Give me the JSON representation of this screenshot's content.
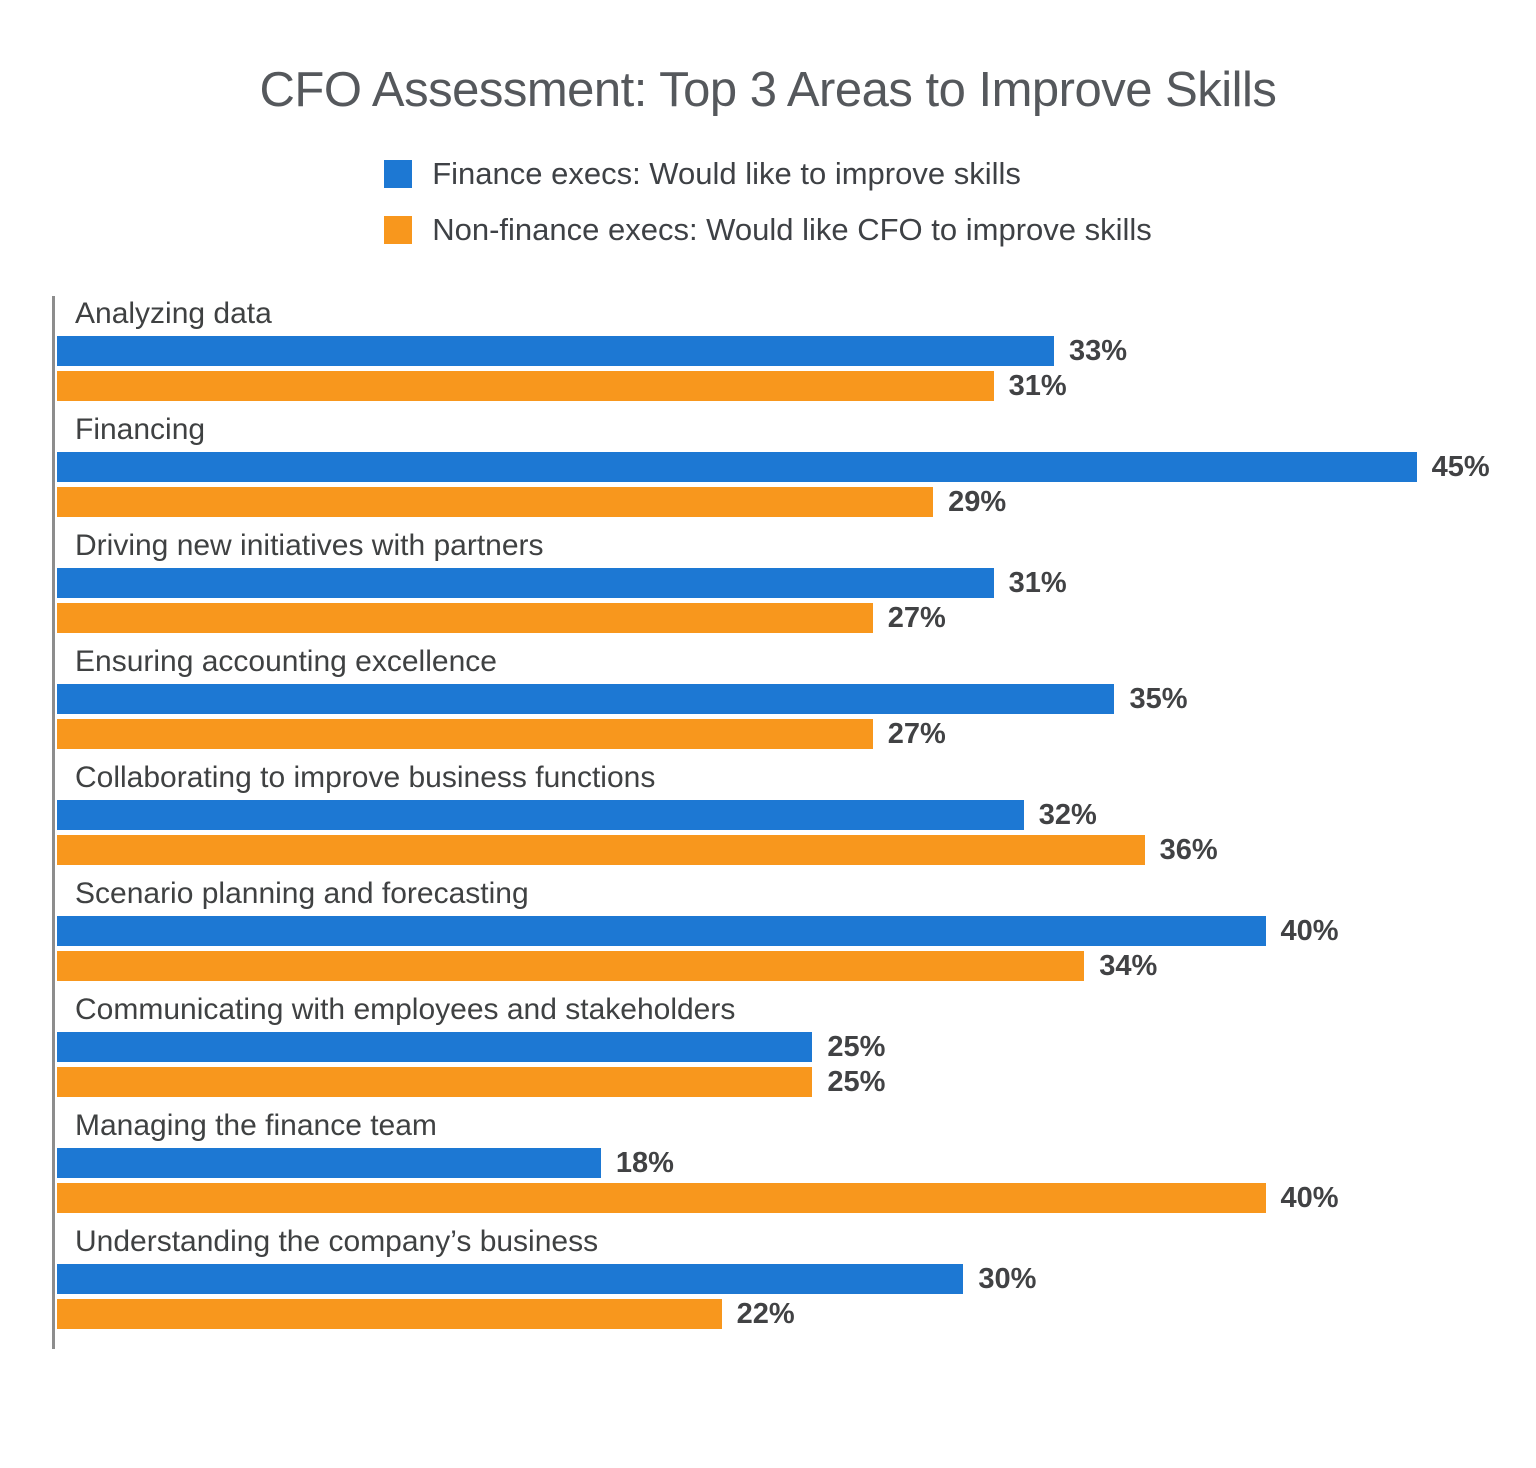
{
  "title": "CFO Assessment: Top 3 Areas to Improve Skills",
  "legend": [
    {
      "label": "Finance execs: Would like to improve skills",
      "color": "#1d78d3"
    },
    {
      "label": "Non-finance execs: Would like CFO to improve skills",
      "color": "#f8971d"
    }
  ],
  "colors": {
    "finance_bar": "#1d78d3",
    "nonfinance_bar": "#f8971d",
    "axis_line": "#8d8d8d",
    "title_text": "#55585c",
    "category_text": "#3f4142",
    "value_text": "#414244"
  },
  "chart_data": {
    "type": "bar",
    "orientation": "horizontal",
    "title": "CFO Assessment: Top 3 Areas to Improve Skills",
    "categories": [
      "Analyzing data",
      "Financing",
      "Driving new initiatives with partners",
      "Ensuring accounting excellence",
      "Collaborating to improve business functions",
      "Scenario planning and forecasting",
      "Communicating with employees and stakeholders",
      "Managing the finance team",
      "Understanding the company’s business"
    ],
    "series": [
      {
        "name": "Finance execs: Would like to improve skills",
        "color": "#1d78d3",
        "values": [
          33,
          45,
          31,
          35,
          32,
          40,
          25,
          18,
          30
        ]
      },
      {
        "name": "Non-finance execs: Would like CFO to improve skills",
        "color": "#f8971d",
        "values": [
          31,
          29,
          27,
          27,
          36,
          34,
          25,
          40,
          22
        ]
      }
    ],
    "value_suffix": "%",
    "xlim": [
      0,
      47
    ],
    "grid": false,
    "legend_position": "top",
    "value_labels": "outside-end"
  }
}
